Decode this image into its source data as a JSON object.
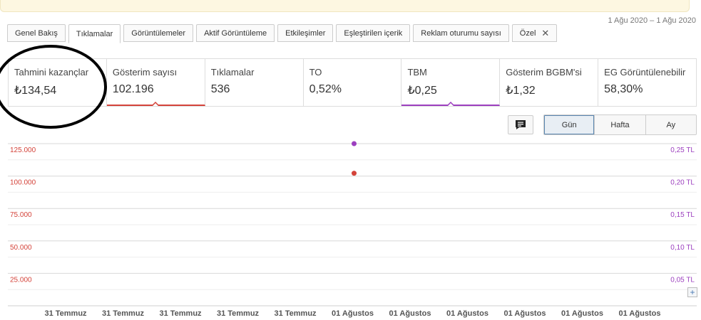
{
  "header": {
    "date_range": "1 Ağu 2020 – 1 Ağu 2020"
  },
  "tabs": [
    {
      "label": "Genel Bakış",
      "active": false
    },
    {
      "label": "Tıklamalar",
      "active": true
    },
    {
      "label": "Görüntülemeler",
      "active": false
    },
    {
      "label": "Aktif Görüntüleme",
      "active": false
    },
    {
      "label": "Etkileşimler",
      "active": false
    },
    {
      "label": "Eşleştirilen içerik",
      "active": false
    },
    {
      "label": "Reklam oturumu sayısı",
      "active": false
    },
    {
      "label": "Özel",
      "active": false,
      "closable": true
    }
  ],
  "metrics": [
    {
      "label": "Tahmini kazançlar",
      "value": "₺134,54",
      "selected": ""
    },
    {
      "label": "Gösterim sayısı",
      "value": "102.196",
      "selected": "red"
    },
    {
      "label": "Tıklamalar",
      "value": "536",
      "selected": ""
    },
    {
      "label": "TO",
      "value": "0,52%",
      "selected": ""
    },
    {
      "label": "TBM",
      "value": "₺0,25",
      "selected": "purple"
    },
    {
      "label": "Gösterim BGBM'si",
      "value": "₺1,32",
      "selected": ""
    },
    {
      "label": "EG Görüntülenebilir",
      "value": "58,30%",
      "selected": ""
    }
  ],
  "controls": {
    "annotation_icon": "comment-icon",
    "periods": [
      {
        "label": "Gün",
        "active": true
      },
      {
        "label": "Hafta",
        "active": false
      },
      {
        "label": "Ay",
        "active": false
      }
    ]
  },
  "colors": {
    "left_axis": "#d4433a",
    "right_axis": "#9c3fbf"
  },
  "chart_data": {
    "type": "scatter",
    "x_tick_labels": [
      "31 Temmuz",
      "31 Temmuz",
      "31 Temmuz",
      "31 Temmuz",
      "31 Temmuz",
      "01 Ağustos",
      "01 Ağustos",
      "01 Ağustos",
      "01 Ağustos",
      "01 Ağustos",
      "01 Ağustos"
    ],
    "y_left": {
      "ticks": [
        25000,
        50000,
        75000,
        100000,
        125000
      ],
      "tick_labels": [
        "25.000",
        "50.000",
        "75.000",
        "100.000",
        "125.000"
      ],
      "ylim": [
        0,
        125000
      ]
    },
    "y_right": {
      "ticks": [
        0.05,
        0.1,
        0.15,
        0.2,
        0.25
      ],
      "tick_labels": [
        "0,05 TL",
        "0,10 TL",
        "0,15 TL",
        "0,20 TL",
        "0,25 TL"
      ],
      "ylim": [
        0,
        0.25
      ]
    },
    "grid": true,
    "series": [
      {
        "axis": "left",
        "color": "#d4433a",
        "points": [
          {
            "x_index": 5,
            "y": 102196
          }
        ]
      },
      {
        "axis": "right",
        "color": "#9c3fbf",
        "points": [
          {
            "x_index": 5,
            "y": 0.25
          }
        ]
      }
    ]
  }
}
